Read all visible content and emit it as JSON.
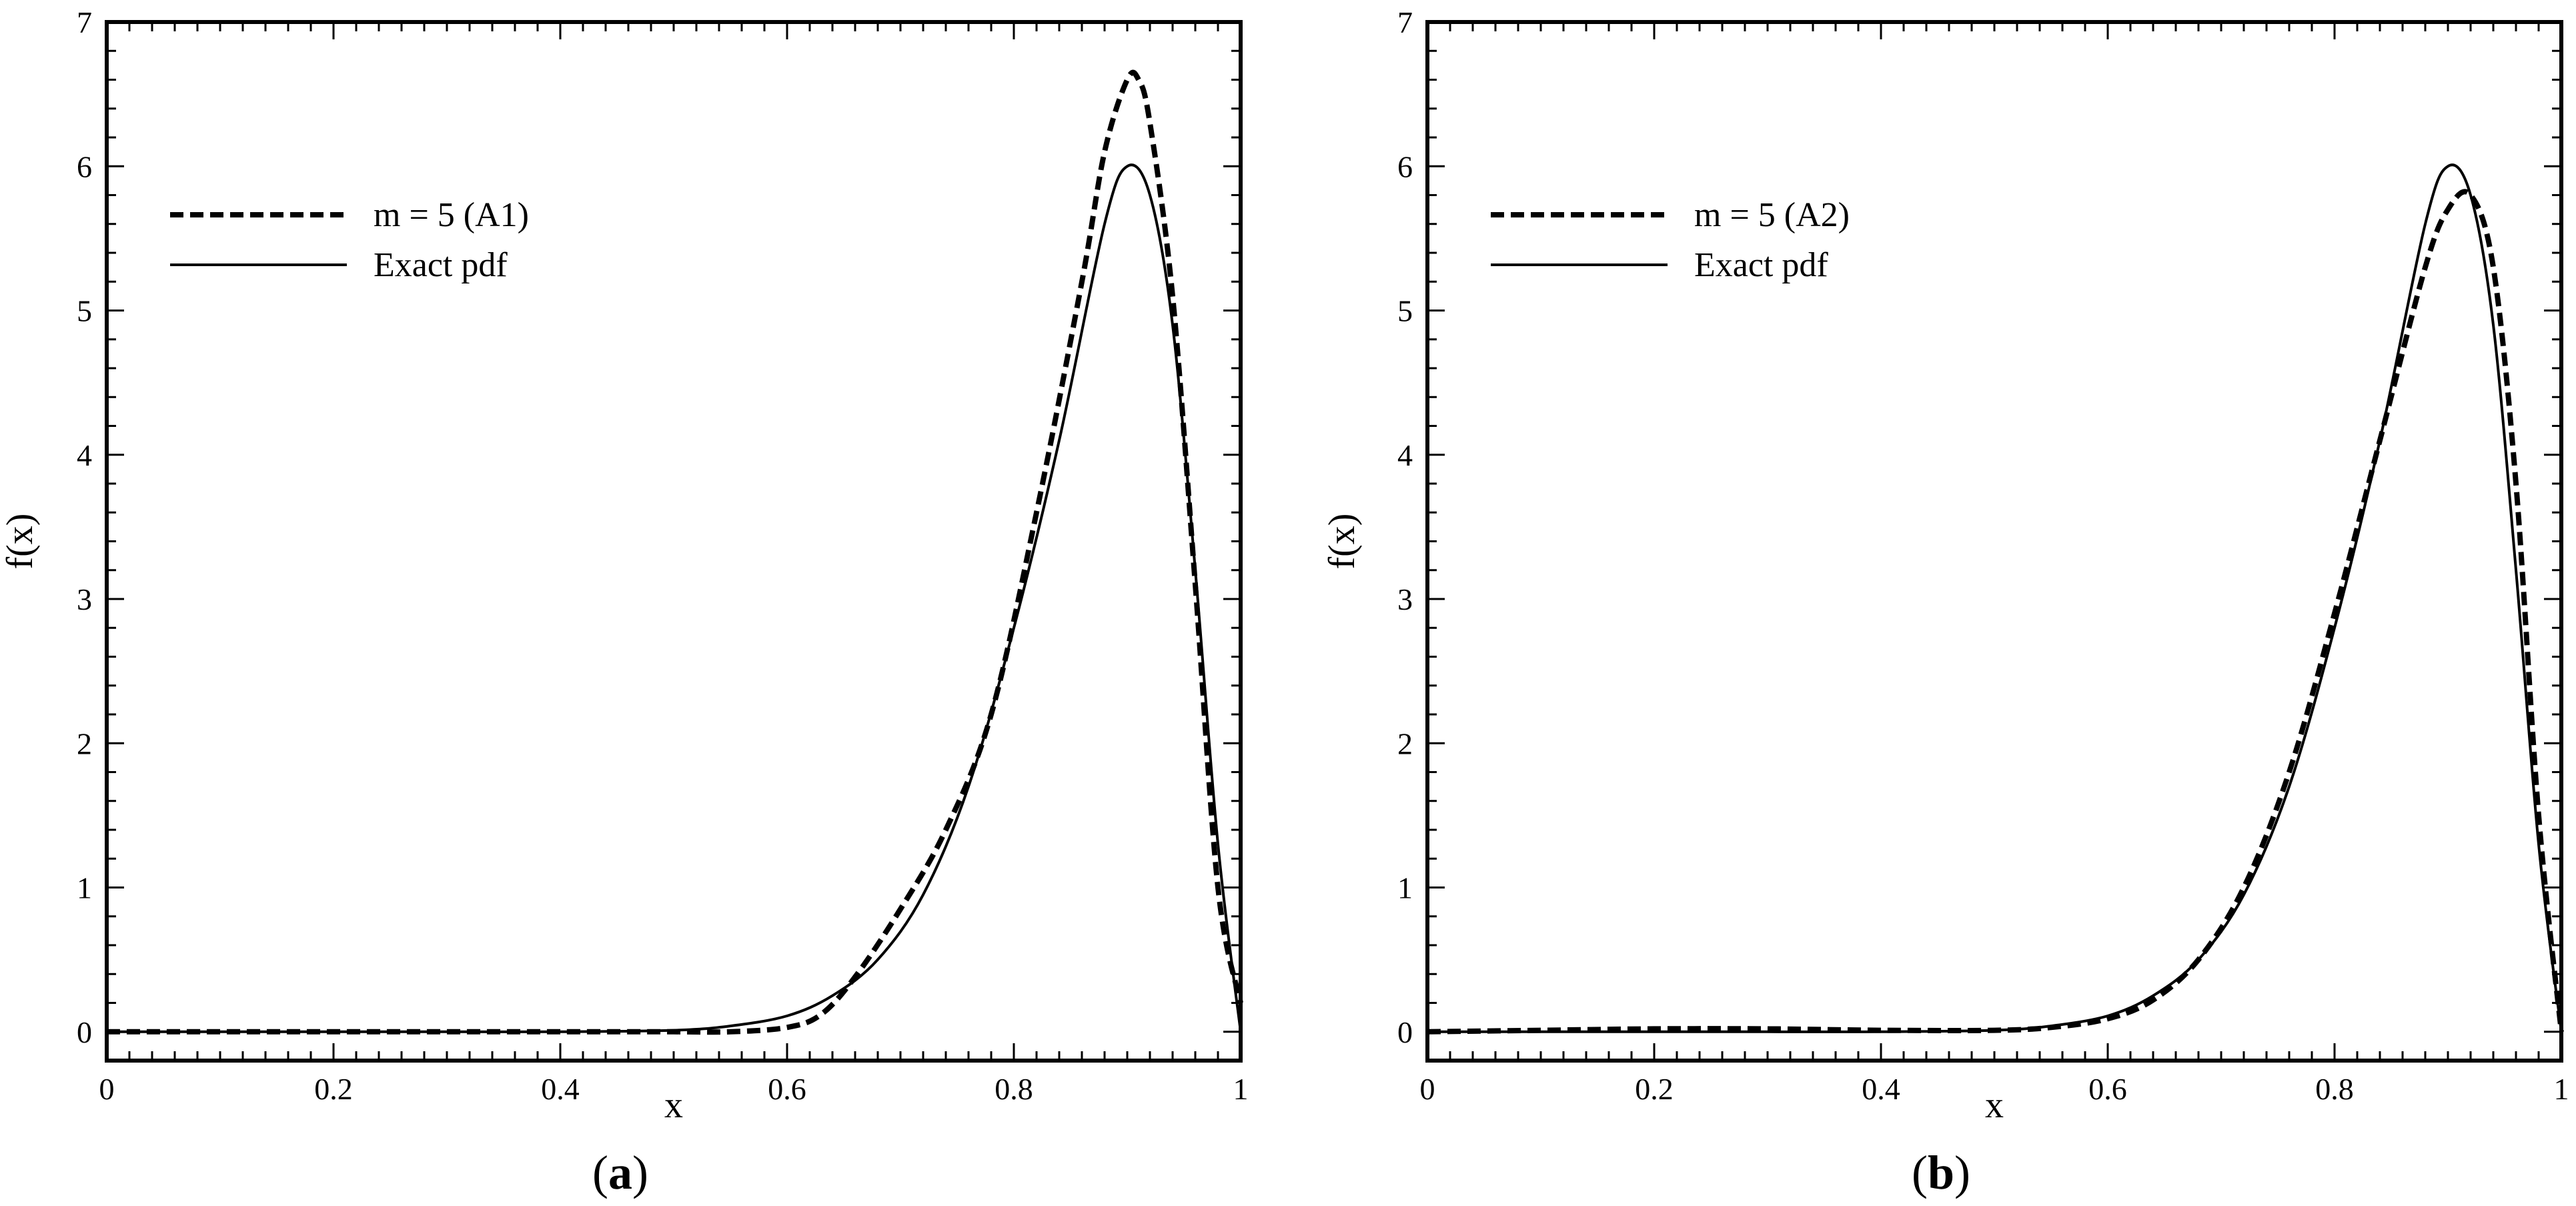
{
  "chart_data": [
    {
      "type": "line",
      "panel_label": "a",
      "title": "",
      "xlabel": "x",
      "ylabel": "f(x)",
      "xlim": [
        0,
        1
      ],
      "ylim": [
        -0.2,
        7
      ],
      "xticks": [
        0,
        0.2,
        0.4,
        0.6,
        0.8,
        1
      ],
      "xtick_labels": [
        "0",
        "0.2",
        "0.4",
        "0.6",
        "0.8",
        "1"
      ],
      "yticks": [
        0,
        1,
        2,
        3,
        4,
        5,
        6,
        7
      ],
      "ytick_labels": [
        "0",
        "1",
        "2",
        "3",
        "4",
        "5",
        "6",
        "7"
      ],
      "grid": false,
      "legend_position": "upper-left",
      "series": [
        {
          "name": "m = 5 (A1)",
          "style": "dashed",
          "x": [
            0,
            0.1,
            0.2,
            0.3,
            0.4,
            0.5,
            0.55,
            0.6,
            0.63,
            0.66,
            0.7,
            0.74,
            0.78,
            0.82,
            0.86,
            0.88,
            0.9,
            0.91,
            0.92,
            0.94,
            0.96,
            0.98,
            1.0
          ],
          "y": [
            0,
            0,
            0,
            0,
            0,
            0,
            0.0,
            0.03,
            0.12,
            0.38,
            0.85,
            1.4,
            2.2,
            3.6,
            5.2,
            6.1,
            6.6,
            6.6,
            6.3,
            5.1,
            3.1,
            1.0,
            0.2
          ]
        },
        {
          "name": "Exact pdf",
          "style": "solid",
          "x": [
            0,
            0.1,
            0.2,
            0.3,
            0.4,
            0.5,
            0.55,
            0.6,
            0.64,
            0.68,
            0.72,
            0.76,
            0.8,
            0.84,
            0.88,
            0.9,
            0.92,
            0.94,
            0.96,
            0.98,
            1.0
          ],
          "y": [
            0,
            0,
            0,
            0,
            0,
            0.01,
            0.04,
            0.11,
            0.25,
            0.5,
            0.95,
            1.7,
            2.8,
            4.1,
            5.6,
            6.0,
            5.8,
            4.9,
            3.2,
            1.3,
            0
          ]
        }
      ]
    },
    {
      "type": "line",
      "panel_label": "b",
      "title": "",
      "xlabel": "x",
      "ylabel": "f(x)",
      "xlim": [
        0,
        1
      ],
      "ylim": [
        -0.2,
        7
      ],
      "xticks": [
        0,
        0.2,
        0.4,
        0.6,
        0.8,
        1
      ],
      "xtick_labels": [
        "0",
        "0.2",
        "0.4",
        "0.6",
        "0.8",
        "1"
      ],
      "yticks": [
        0,
        1,
        2,
        3,
        4,
        5,
        6,
        7
      ],
      "ytick_labels": [
        "0",
        "1",
        "2",
        "3",
        "4",
        "5",
        "6",
        "7"
      ],
      "grid": false,
      "legend_position": "upper-left",
      "series": [
        {
          "name": "m = 5 (A2)",
          "style": "dashed",
          "x": [
            0,
            0.1,
            0.2,
            0.3,
            0.4,
            0.5,
            0.55,
            0.6,
            0.64,
            0.68,
            0.72,
            0.76,
            0.8,
            0.84,
            0.88,
            0.9,
            0.92,
            0.94,
            0.96,
            0.98,
            1.0
          ],
          "y": [
            0,
            0.01,
            0.02,
            0.02,
            0.01,
            0.01,
            0.03,
            0.09,
            0.22,
            0.5,
            1.0,
            1.8,
            2.9,
            4.1,
            5.3,
            5.7,
            5.8,
            5.3,
            3.8,
            1.5,
            0
          ]
        },
        {
          "name": "Exact pdf",
          "style": "solid",
          "x": [
            0,
            0.1,
            0.2,
            0.3,
            0.4,
            0.5,
            0.55,
            0.6,
            0.64,
            0.68,
            0.72,
            0.76,
            0.8,
            0.84,
            0.88,
            0.9,
            0.92,
            0.94,
            0.96,
            0.98,
            1.0
          ],
          "y": [
            0,
            0,
            0,
            0,
            0,
            0.01,
            0.04,
            0.11,
            0.25,
            0.5,
            0.95,
            1.7,
            2.8,
            4.1,
            5.6,
            6.0,
            5.8,
            4.9,
            3.2,
            1.3,
            0
          ]
        }
      ]
    }
  ]
}
